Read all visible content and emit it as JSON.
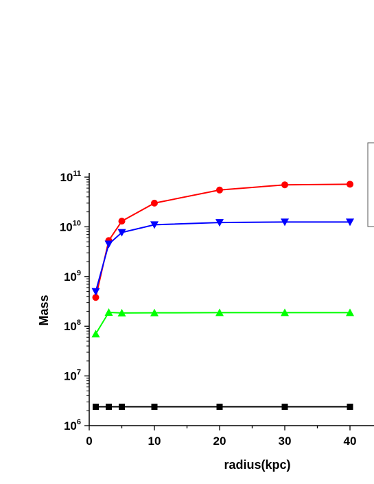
{
  "chart_data": {
    "type": "line",
    "title": "",
    "xlabel": "radius(kpc)",
    "ylabel": "Mass",
    "xlim": [
      0,
      43
    ],
    "ylim": [
      1000000,
      150000000000
    ],
    "yscale": "log",
    "x_ticks": [
      0,
      10,
      20,
      30,
      40
    ],
    "x_tick_labels": [
      "0",
      "10",
      "20",
      "30",
      "40"
    ],
    "y_ticks": [
      1000000,
      10000000,
      100000000,
      1000000000,
      10000000000,
      100000000000
    ],
    "y_tick_labels": [
      {
        "base": "10",
        "exp": "6"
      },
      {
        "base": "10",
        "exp": "7"
      },
      {
        "base": "10",
        "exp": "8"
      },
      {
        "base": "10",
        "exp": "9"
      },
      {
        "base": "10",
        "exp": "10"
      },
      {
        "base": "10",
        "exp": "11"
      }
    ],
    "x": [
      1,
      3,
      5,
      10,
      20,
      30,
      40
    ],
    "series": [
      {
        "color": "#ff0000",
        "marker": "circle",
        "values": [
          380000000,
          5300000000,
          13000000000,
          30000000000,
          55000000000,
          70000000000,
          72000000000
        ]
      },
      {
        "color": "#0000ff",
        "marker": "triangle-down",
        "values": [
          500000000,
          4500000000,
          7700000000,
          11000000000,
          12200000000,
          12500000000,
          12500000000
        ]
      },
      {
        "color": "#00ff00",
        "marker": "triangle-up",
        "values": [
          70000000,
          190000000,
          185000000,
          186000000,
          188000000,
          188000000,
          188000000
        ]
      },
      {
        "color": "#000000",
        "marker": "square",
        "values": [
          2400000,
          2400000,
          2400000,
          2400000,
          2400000,
          2400000,
          2400000
        ]
      }
    ],
    "legend": {
      "position": "top-right",
      "entries": []
    }
  }
}
